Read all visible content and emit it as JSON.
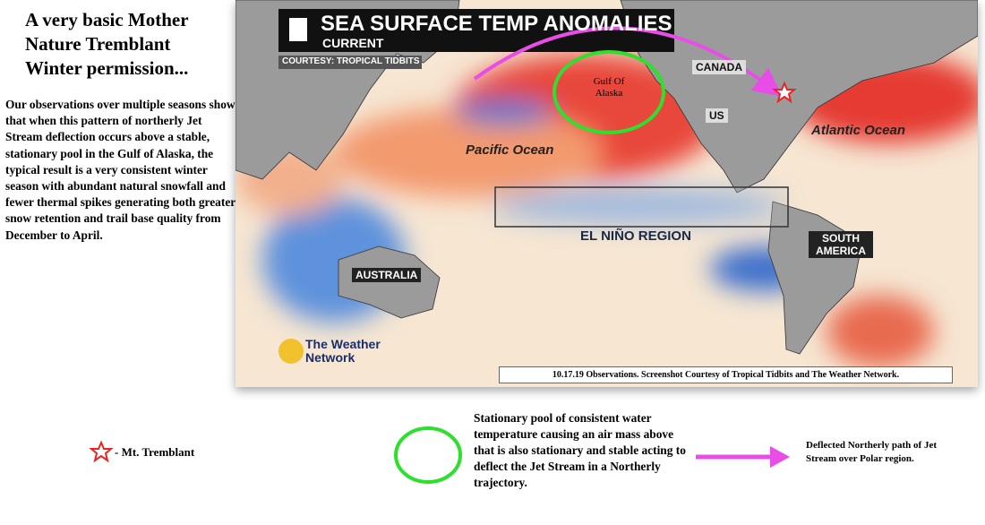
{
  "sidebar": {
    "title": "A very basic Mother Nature Tremblant Winter permission...",
    "body": "Our observations over multiple seasons show that when this pattern of northerly Jet Stream deflection occurs above a stable, stationary pool in the Gulf of Alaska, the typical result is a very consistent winter season with abundant natural snowfall and fewer thermal spikes generating both greater snow retention and trail base quality from December to April."
  },
  "map": {
    "header": {
      "title": "SEA SURFACE TEMP ANOMALIES",
      "subtitle": "CURRENT",
      "courtesy": "COURTESY: TROPICAL TIDBITS"
    },
    "labels": {
      "canada": "CANADA",
      "us": "US",
      "gulf": "Gulf Of Alaska",
      "pacific": "Pacific Ocean",
      "atlantic": "Atlantic Ocean",
      "el_nino": "EL NIÑO REGION",
      "south_america": "SOUTH AMERICA",
      "australia": "AUSTRALIA"
    },
    "logo": "The Weather Network",
    "caption": "10.17.19 Observations. Screenshot Courtesy of Tropical Tidbits and The Weather Network."
  },
  "legend": {
    "star": "- Mt. Tremblant",
    "circle": "Stationary pool of consistent water temperature causing an air mass above that is also stationary and stable acting to deflect the Jet Stream in a Northerly trajectory.",
    "arrow": "Deflected Northerly path of Jet Stream over Polar region."
  }
}
